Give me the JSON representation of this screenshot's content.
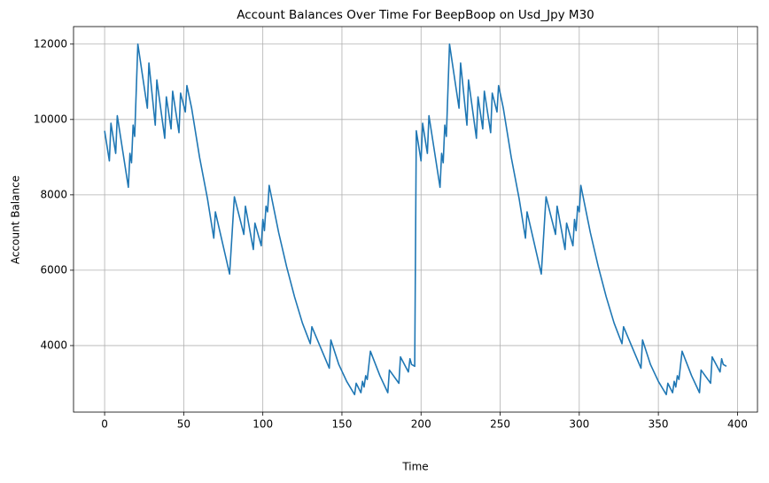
{
  "chart_data": {
    "type": "line",
    "title": "Account Balances Over Time For BeepBoop on Usd_Jpy M30",
    "x_label": "Time",
    "y_label": "Account Balance",
    "x": [
      0,
      3,
      4,
      7,
      8,
      15,
      16,
      17,
      18,
      19,
      21,
      27,
      28,
      32,
      33,
      38,
      39,
      42,
      43,
      47,
      48,
      51,
      52,
      55,
      60,
      65,
      69,
      70,
      79,
      82,
      88,
      89,
      94,
      95,
      99,
      100,
      101,
      102,
      103,
      104,
      110,
      115,
      120,
      125,
      130,
      131,
      142,
      143,
      148,
      153,
      158,
      159,
      162,
      163,
      164,
      165,
      166,
      168,
      174,
      179,
      180,
      186,
      187,
      192,
      193,
      194,
      196,
      197,
      200,
      201,
      204,
      205,
      212,
      213,
      214,
      215,
      216,
      218,
      224,
      225,
      229,
      230,
      235,
      236,
      239,
      240,
      244,
      245,
      248,
      249,
      252,
      257,
      262,
      266,
      267,
      276,
      279,
      285,
      286,
      291,
      292,
      296,
      297,
      298,
      299,
      300,
      301,
      307,
      312,
      317,
      322,
      327,
      328,
      339,
      340,
      345,
      350,
      355,
      356,
      359,
      360,
      361,
      362,
      363,
      365,
      371,
      376,
      377,
      383,
      384,
      389,
      390,
      391,
      393
    ],
    "series": [
      {
        "name": "Account Balance",
        "color": "#1f77b4",
        "values": [
          9700,
          8900,
          9900,
          9100,
          10100,
          8200,
          9100,
          8850,
          9850,
          9550,
          12000,
          10300,
          11500,
          9850,
          11050,
          9500,
          10600,
          9750,
          10750,
          9650,
          10700,
          10200,
          10900,
          10300,
          9000,
          7900,
          6850,
          7550,
          5900,
          7950,
          6950,
          7700,
          6550,
          7250,
          6650,
          7350,
          7050,
          7700,
          7550,
          8250,
          7000,
          6100,
          5300,
          4600,
          4050,
          4500,
          3400,
          4150,
          3500,
          3050,
          2700,
          3000,
          2750,
          3050,
          2900,
          3200,
          3100,
          3850,
          3200,
          2750,
          3350,
          3000,
          3700,
          3300,
          3650,
          3500,
          3450,
          9700,
          8900,
          9900,
          9100,
          10100,
          8200,
          9100,
          8850,
          9850,
          9550,
          12000,
          10300,
          11500,
          9850,
          11050,
          9500,
          10600,
          9750,
          10750,
          9650,
          10700,
          10200,
          10900,
          10300,
          9000,
          7900,
          6850,
          7550,
          5900,
          7950,
          6950,
          7700,
          6550,
          7250,
          6650,
          7350,
          7050,
          7700,
          7550,
          8250,
          7000,
          6100,
          5300,
          4600,
          4050,
          4500,
          3400,
          4150,
          3500,
          3050,
          2700,
          3000,
          2750,
          3050,
          2900,
          3200,
          3100,
          3850,
          3200,
          2750,
          3350,
          3000,
          3700,
          3300,
          3650,
          3500,
          3450
        ]
      }
    ],
    "xlim": [
      -19.65,
      412.65
    ],
    "ylim": [
      2235,
      12465
    ],
    "xticks": [
      0,
      50,
      100,
      150,
      200,
      250,
      300,
      350,
      400
    ],
    "yticks": [
      4000,
      6000,
      8000,
      10000,
      12000
    ],
    "grid": true
  }
}
